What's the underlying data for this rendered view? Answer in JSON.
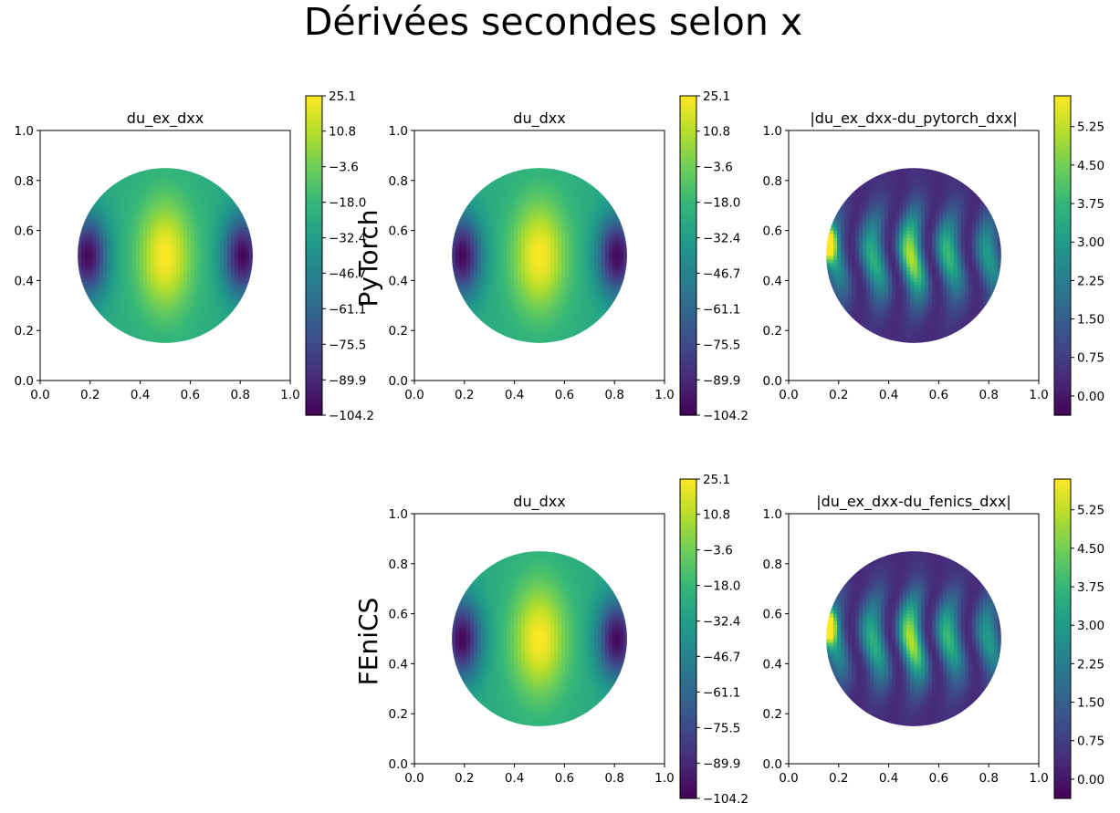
{
  "figure": {
    "suptitle": "Dérivées secondes selon x",
    "row_labels": [
      "PyTorch",
      "FEniCS"
    ]
  },
  "colors": {
    "colormap": "viridis",
    "viridis_stops": [
      "#440154",
      "#482878",
      "#3e4989",
      "#31688e",
      "#26828e",
      "#1f9e89",
      "#35b779",
      "#6ece58",
      "#b5de2b",
      "#fde725"
    ]
  },
  "chart_data": [
    {
      "type": "heatmap",
      "title": "du_ex_dxx",
      "row": "PyTorch",
      "x_ticks": [
        "0.0",
        "0.2",
        "0.4",
        "0.6",
        "0.8",
        "1.0"
      ],
      "y_ticks": [
        "0.0",
        "0.2",
        "0.4",
        "0.6",
        "0.8",
        "1.0"
      ],
      "xlim": [
        0,
        1
      ],
      "ylim": [
        0,
        1
      ],
      "domain": {
        "shape": "disk",
        "center": [
          0.5,
          0.5
        ],
        "radius": 0.35
      },
      "field": "smooth",
      "colorbar": {
        "min": -104.2,
        "max": 25.1,
        "ticks": [
          "25.1",
          "10.8",
          "−3.6",
          "−18.0",
          "−32.4",
          "−46.7",
          "−61.1",
          "−75.5",
          "−89.9",
          "−104.2"
        ]
      }
    },
    {
      "type": "heatmap",
      "title": "du_dxx",
      "row": "PyTorch",
      "x_ticks": [
        "0.0",
        "0.2",
        "0.4",
        "0.6",
        "0.8",
        "1.0"
      ],
      "y_ticks": [
        "0.0",
        "0.2",
        "0.4",
        "0.6",
        "0.8",
        "1.0"
      ],
      "xlim": [
        0,
        1
      ],
      "ylim": [
        0,
        1
      ],
      "domain": {
        "shape": "disk",
        "center": [
          0.5,
          0.5
        ],
        "radius": 0.35
      },
      "field": "smooth",
      "colorbar": {
        "min": -104.2,
        "max": 25.1,
        "ticks": [
          "25.1",
          "10.8",
          "−3.6",
          "−18.0",
          "−32.4",
          "−46.7",
          "−61.1",
          "−75.5",
          "−89.9",
          "−104.2"
        ]
      }
    },
    {
      "type": "heatmap",
      "title": "|du_ex_dxx-du_pytorch_dxx|",
      "row": "PyTorch",
      "x_ticks": [
        "0.0",
        "0.2",
        "0.4",
        "0.6",
        "0.8",
        "1.0"
      ],
      "y_ticks": [
        "0.0",
        "0.2",
        "0.4",
        "0.6",
        "0.8",
        "1.0"
      ],
      "xlim": [
        0,
        1
      ],
      "ylim": [
        0,
        1
      ],
      "domain": {
        "shape": "disk",
        "center": [
          0.5,
          0.5
        ],
        "radius": 0.35
      },
      "field": "error",
      "colorbar": {
        "min": -0.375,
        "max": 5.85,
        "ticks": [
          "5.25",
          "4.50",
          "3.75",
          "3.00",
          "2.25",
          "1.50",
          "0.75",
          "0.00"
        ]
      }
    },
    {
      "type": "heatmap",
      "title": "du_dxx",
      "row": "FEniCS",
      "x_ticks": [
        "0.0",
        "0.2",
        "0.4",
        "0.6",
        "0.8",
        "1.0"
      ],
      "y_ticks": [
        "0.0",
        "0.2",
        "0.4",
        "0.6",
        "0.8",
        "1.0"
      ],
      "xlim": [
        0,
        1
      ],
      "ylim": [
        0,
        1
      ],
      "domain": {
        "shape": "disk",
        "center": [
          0.5,
          0.5
        ],
        "radius": 0.35
      },
      "field": "smooth",
      "colorbar": {
        "min": -104.2,
        "max": 25.1,
        "ticks": [
          "25.1",
          "10.8",
          "−3.6",
          "−18.0",
          "−32.4",
          "−46.7",
          "−61.1",
          "−75.5",
          "−89.9",
          "−104.2"
        ]
      }
    },
    {
      "type": "heatmap",
      "title": "|du_ex_dxx-du_fenics_dxx|",
      "row": "FEniCS",
      "x_ticks": [
        "0.0",
        "0.2",
        "0.4",
        "0.6",
        "0.8",
        "1.0"
      ],
      "y_ticks": [
        "0.0",
        "0.2",
        "0.4",
        "0.6",
        "0.8",
        "1.0"
      ],
      "xlim": [
        0,
        1
      ],
      "ylim": [
        0,
        1
      ],
      "domain": {
        "shape": "disk",
        "center": [
          0.5,
          0.5
        ],
        "radius": 0.35
      },
      "field": "error",
      "colorbar": {
        "min": -0.375,
        "max": 5.85,
        "ticks": [
          "5.25",
          "4.50",
          "3.75",
          "3.00",
          "2.25",
          "1.50",
          "0.75",
          "0.00"
        ]
      }
    }
  ]
}
